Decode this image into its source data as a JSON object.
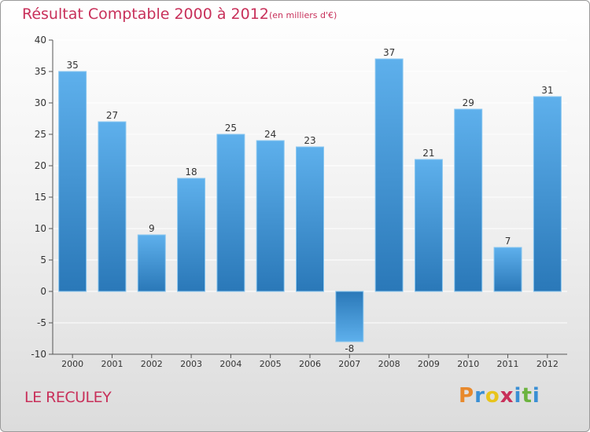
{
  "header": {
    "title": "Résultat Comptable 2000 à 2012",
    "subtitle": "(en milliers d'€)"
  },
  "footer": {
    "commune": "LE RECULEY",
    "logo_letters": [
      "P",
      "r",
      "o",
      "x",
      "i",
      "t",
      "i"
    ],
    "logo_colors": [
      "#e8892c",
      "#3a8fd4",
      "#e8c41c",
      "#c8305a",
      "#3a8fd4",
      "#6cb33f",
      "#3a8fd4"
    ]
  },
  "colors": {
    "bar_light": "#5eb0ec",
    "bar_dark": "#2a78b8",
    "grid": "#ffffff",
    "axis": "#555555",
    "text": "#333333"
  },
  "chart_data": {
    "type": "bar",
    "title": "Résultat Comptable 2000 à 2012",
    "categories": [
      "2000",
      "2001",
      "2002",
      "2003",
      "2004",
      "2005",
      "2006",
      "2007",
      "2008",
      "2009",
      "2010",
      "2011",
      "2012"
    ],
    "values": [
      35,
      27,
      9,
      18,
      25,
      24,
      23,
      -8,
      37,
      21,
      29,
      7,
      31
    ],
    "ylim": [
      -10,
      40
    ],
    "yticks": [
      -10,
      -5,
      0,
      5,
      10,
      15,
      20,
      25,
      30,
      35,
      40
    ],
    "grid": true,
    "xlabel": "",
    "ylabel": ""
  }
}
